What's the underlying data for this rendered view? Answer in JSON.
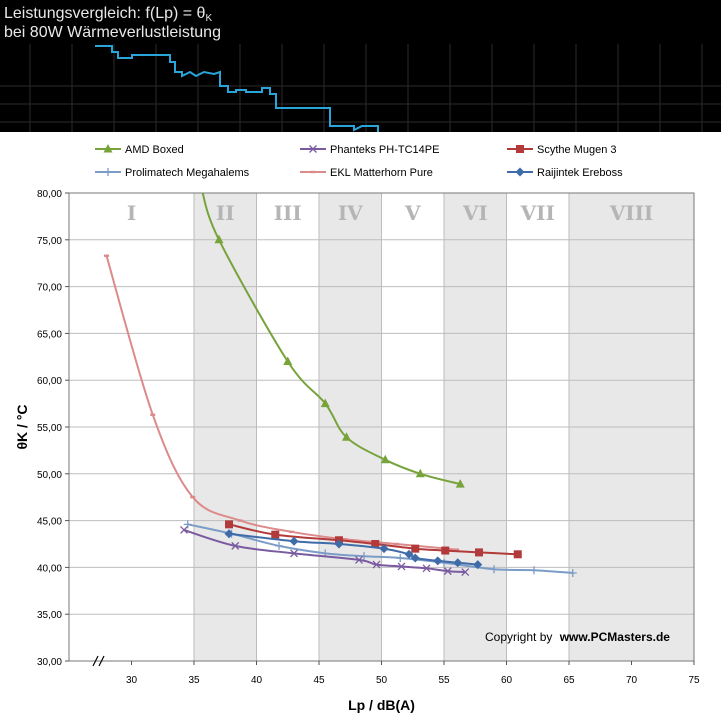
{
  "header": {
    "title_line1_prefix": "Leistungsvergleich: f(Lp) = θ",
    "title_line1_sub": "K",
    "title_line2": "bei 80W Wärmeverlustleistung"
  },
  "copyright": {
    "prefix": "Copyright by",
    "site": "www.PCMasters.de"
  },
  "colors": {
    "grid": "#bdbdbd",
    "zone_shade": "#e8e8e8"
  },
  "chart_data": {
    "type": "line",
    "title": "Leistungsvergleich: f(Lp) = θK bei 80W Wärmeverlustleistung",
    "xlabel": "Lp / dB(A)",
    "ylabel": "θK / °C",
    "xlim": [
      25,
      75
    ],
    "ylim": [
      30,
      80
    ],
    "x_ticks": [
      "30",
      "35",
      "40",
      "45",
      "50",
      "55",
      "60",
      "65",
      "70",
      "75"
    ],
    "x_tick_values": [
      30,
      35,
      40,
      45,
      50,
      55,
      60,
      65,
      70,
      75
    ],
    "y_ticks": [
      "30,00",
      "35,00",
      "40,00",
      "45,00",
      "50,00",
      "55,00",
      "60,00",
      "65,00",
      "70,00",
      "75,00",
      "80,00"
    ],
    "y_tick_values": [
      30,
      35,
      40,
      45,
      50,
      55,
      60,
      65,
      70,
      75,
      80
    ],
    "grid": true,
    "legend_position": "top",
    "zones": [
      {
        "label": "I",
        "x0": 25,
        "x1": 35,
        "shaded": false
      },
      {
        "label": "II",
        "x0": 35,
        "x1": 40,
        "shaded": true
      },
      {
        "label": "III",
        "x0": 40,
        "x1": 45,
        "shaded": false
      },
      {
        "label": "IV",
        "x0": 45,
        "x1": 50,
        "shaded": true
      },
      {
        "label": "V",
        "x0": 50,
        "x1": 55,
        "shaded": false
      },
      {
        "label": "VI",
        "x0": 55,
        "x1": 60,
        "shaded": true
      },
      {
        "label": "VII",
        "x0": 60,
        "x1": 65,
        "shaded": false
      },
      {
        "label": "VIII",
        "x0": 65,
        "x1": 75,
        "shaded": true
      }
    ],
    "series": [
      {
        "name": "AMD Boxed",
        "color": "#77a33b",
        "marker": "triangle",
        "x": [
          37.0,
          42.5,
          45.5,
          47.2,
          50.3,
          53.1,
          56.3
        ],
        "y": [
          75.0,
          62.0,
          57.5,
          53.9,
          51.5,
          50.0,
          48.9
        ],
        "curve_start": [
          35.6,
          80.5
        ]
      },
      {
        "name": "Phanteks PH-TC14PE",
        "color": "#7a5aa0",
        "marker": "x",
        "x": [
          34.2,
          38.3,
          43.0,
          48.2,
          49.6,
          51.6,
          53.6,
          55.3,
          56.7
        ],
        "y": [
          44.0,
          42.3,
          41.5,
          40.8,
          40.3,
          40.1,
          39.9,
          39.6,
          39.5
        ]
      },
      {
        "name": "Scythe Mugen 3",
        "color": "#b23a3a",
        "marker": "square",
        "x": [
          37.8,
          41.5,
          46.6,
          49.5,
          52.7,
          55.1,
          57.8,
          60.9
        ],
        "y": [
          44.6,
          43.5,
          42.9,
          42.5,
          42.0,
          41.8,
          41.6,
          41.4
        ]
      },
      {
        "name": "Prolimatech Megahalems",
        "color": "#7c9cc8",
        "marker": "plus",
        "x": [
          34.5,
          38.0,
          41.8,
          45.5,
          48.6,
          51.5,
          55.0,
          59.0,
          62.2,
          65.3
        ],
        "y": [
          44.6,
          43.6,
          42.3,
          41.5,
          41.2,
          41.0,
          40.5,
          39.8,
          39.7,
          39.4
        ]
      },
      {
        "name": "EKL Matterhorn Pure",
        "color": "#dc8a8a",
        "marker": "dash",
        "x": [
          28.0,
          31.7,
          34.9,
          38.7,
          42.8,
          47.1,
          51.2,
          56.0
        ],
        "y": [
          73.3,
          56.3,
          47.5,
          45.0,
          43.8,
          43.0,
          42.5,
          41.9
        ]
      },
      {
        "name": "Raijintek Ereboss",
        "color": "#3f6ca8",
        "marker": "diamond",
        "x": [
          37.8,
          43.0,
          46.6,
          50.2,
          52.2,
          52.7,
          54.5,
          56.1,
          57.7
        ],
        "y": [
          43.6,
          42.8,
          42.5,
          42.0,
          41.4,
          41.0,
          40.7,
          40.5,
          40.3
        ]
      }
    ]
  }
}
